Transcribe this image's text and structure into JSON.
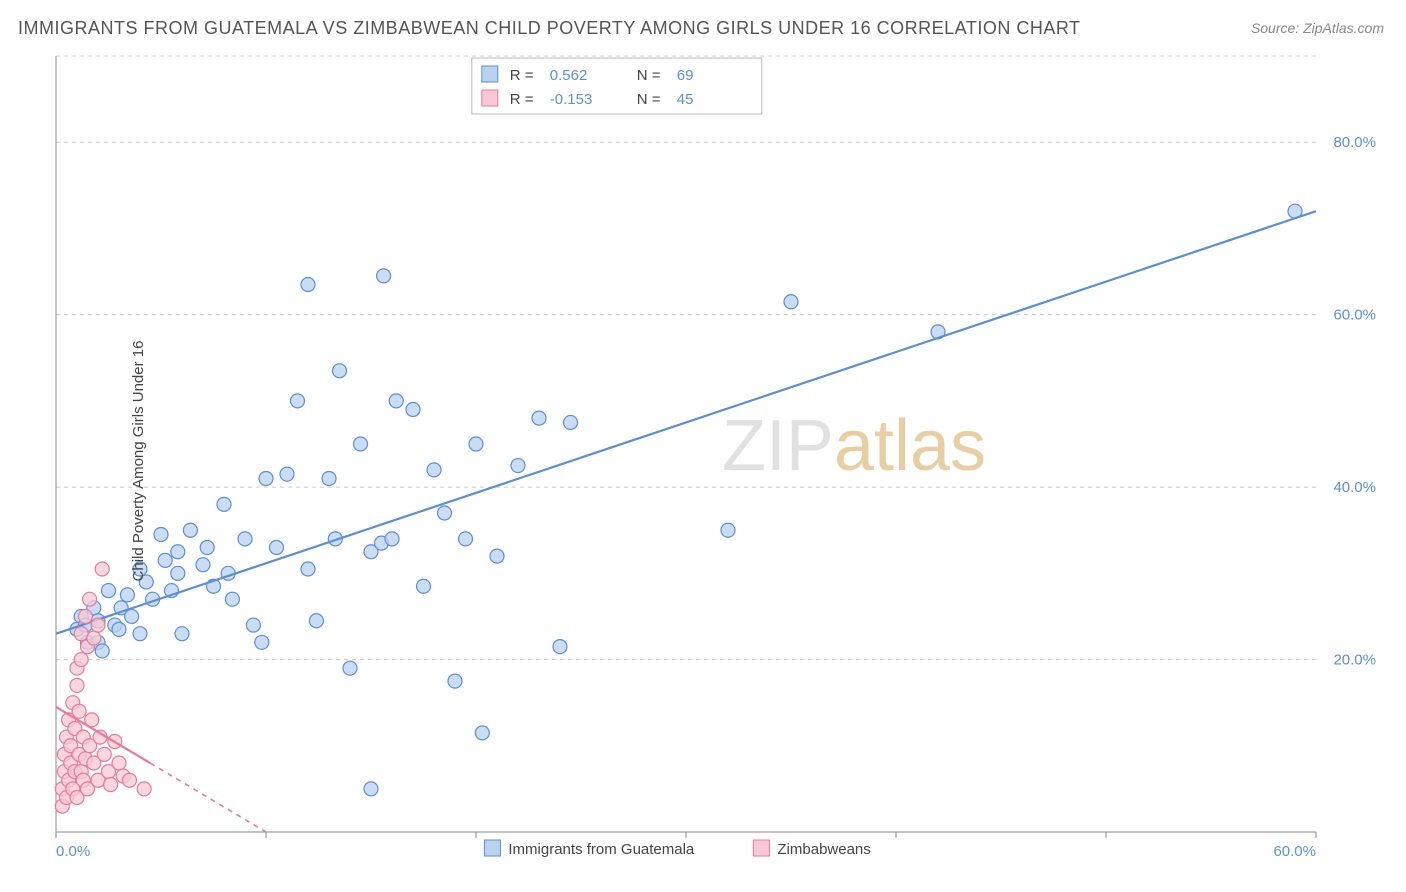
{
  "title": "IMMIGRANTS FROM GUATEMALA VS ZIMBABWEAN CHILD POVERTY AMONG GIRLS UNDER 16 CORRELATION CHART",
  "source_label": "Source: ZipAtlas.com",
  "y_axis_label": "Child Poverty Among Girls Under 16",
  "watermark": {
    "part1": "ZIP",
    "part2": "atlas"
  },
  "chart": {
    "type": "scatter",
    "xlim": [
      0,
      60
    ],
    "ylim": [
      0,
      90
    ],
    "x_ticks": [
      0,
      10,
      20,
      30,
      40,
      50,
      60
    ],
    "x_tick_labels": [
      "0.0%",
      "",
      "",
      "",
      "",
      "",
      "60.0%"
    ],
    "y_ticks": [
      20,
      40,
      60,
      80
    ],
    "y_tick_labels": [
      "20.0%",
      "40.0%",
      "60.0%",
      "80.0%"
    ],
    "grid_y": [
      20,
      40,
      60,
      80,
      90
    ],
    "background_color": "#ffffff",
    "grid_color": "#cccccc",
    "series": [
      {
        "name": "Immigrants from Guatemala",
        "color_fill": "#b9d2f0",
        "color_stroke": "#5b8fd6",
        "marker_radius": 7,
        "R": "0.562",
        "N": "69",
        "trend": {
          "x1": 0,
          "y1": 23,
          "x2": 60,
          "y2": 72,
          "solid_until_x": 60
        },
        "points": [
          [
            1.0,
            23.5
          ],
          [
            1.2,
            25.0
          ],
          [
            1.4,
            24.0
          ],
          [
            1.5,
            22.0
          ],
          [
            1.8,
            26.0
          ],
          [
            2.0,
            22.0
          ],
          [
            2.0,
            24.5
          ],
          [
            2.2,
            21.0
          ],
          [
            2.5,
            28.0
          ],
          [
            2.8,
            24.0
          ],
          [
            3.0,
            23.5
          ],
          [
            3.1,
            26.0
          ],
          [
            3.4,
            27.5
          ],
          [
            3.6,
            25.0
          ],
          [
            4.0,
            23.0
          ],
          [
            4.0,
            30.5
          ],
          [
            4.3,
            29.0
          ],
          [
            4.6,
            27.0
          ],
          [
            5.0,
            34.5
          ],
          [
            5.2,
            31.5
          ],
          [
            5.5,
            28.0
          ],
          [
            5.8,
            30.0
          ],
          [
            5.8,
            32.5
          ],
          [
            6.0,
            23.0
          ],
          [
            6.4,
            35.0
          ],
          [
            7.0,
            31.0
          ],
          [
            7.2,
            33.0
          ],
          [
            7.5,
            28.5
          ],
          [
            8.0,
            38.0
          ],
          [
            8.2,
            30.0
          ],
          [
            8.4,
            27.0
          ],
          [
            9.0,
            34.0
          ],
          [
            9.4,
            24.0
          ],
          [
            9.8,
            22.0
          ],
          [
            10.0,
            41.0
          ],
          [
            10.5,
            33.0
          ],
          [
            11.0,
            41.5
          ],
          [
            11.5,
            50.0
          ],
          [
            12.0,
            30.5
          ],
          [
            12.0,
            63.5
          ],
          [
            12.4,
            24.5
          ],
          [
            13.0,
            41.0
          ],
          [
            13.3,
            34.0
          ],
          [
            13.5,
            53.5
          ],
          [
            14.0,
            19.0
          ],
          [
            14.5,
            45.0
          ],
          [
            15.0,
            32.5
          ],
          [
            15.0,
            5.0
          ],
          [
            15.5,
            33.5
          ],
          [
            15.6,
            64.5
          ],
          [
            16.0,
            34.0
          ],
          [
            16.2,
            50.0
          ],
          [
            17.0,
            49.0
          ],
          [
            17.5,
            28.5
          ],
          [
            18.0,
            42.0
          ],
          [
            18.5,
            37.0
          ],
          [
            19.0,
            17.5
          ],
          [
            19.5,
            34.0
          ],
          [
            20.0,
            45.0
          ],
          [
            20.3,
            11.5
          ],
          [
            21.0,
            32.0
          ],
          [
            22.0,
            42.5
          ],
          [
            23.0,
            48.0
          ],
          [
            24.0,
            21.5
          ],
          [
            24.5,
            47.5
          ],
          [
            32.0,
            35.0
          ],
          [
            35.0,
            61.5
          ],
          [
            42.0,
            58.0
          ],
          [
            59.0,
            72.0
          ]
        ]
      },
      {
        "name": "Zimbabweans",
        "color_fill": "#f8c9d4",
        "color_stroke": "#e87a9a",
        "marker_radius": 7,
        "R": "-0.153",
        "N": "45",
        "trend": {
          "x1": 0,
          "y1": 14.5,
          "x2": 10,
          "y2": 0,
          "solid_until_x": 4.5
        },
        "points": [
          [
            0.3,
            3.0
          ],
          [
            0.3,
            5.0
          ],
          [
            0.4,
            7.0
          ],
          [
            0.4,
            9.0
          ],
          [
            0.5,
            4.0
          ],
          [
            0.5,
            11.0
          ],
          [
            0.6,
            6.0
          ],
          [
            0.6,
            13.0
          ],
          [
            0.7,
            8.0
          ],
          [
            0.7,
            10.0
          ],
          [
            0.8,
            5.0
          ],
          [
            0.8,
            15.0
          ],
          [
            0.9,
            7.0
          ],
          [
            0.9,
            12.0
          ],
          [
            1.0,
            4.0
          ],
          [
            1.0,
            17.0
          ],
          [
            1.0,
            19.0
          ],
          [
            1.1,
            9.0
          ],
          [
            1.1,
            14.0
          ],
          [
            1.2,
            7.0
          ],
          [
            1.2,
            20.0
          ],
          [
            1.2,
            23.0
          ],
          [
            1.3,
            6.0
          ],
          [
            1.3,
            11.0
          ],
          [
            1.4,
            8.5
          ],
          [
            1.4,
            25.0
          ],
          [
            1.5,
            5.0
          ],
          [
            1.5,
            21.5
          ],
          [
            1.6,
            10.0
          ],
          [
            1.6,
            27.0
          ],
          [
            1.7,
            13.0
          ],
          [
            1.8,
            8.0
          ],
          [
            1.8,
            22.5
          ],
          [
            2.0,
            6.0
          ],
          [
            2.0,
            24.0
          ],
          [
            2.1,
            11.0
          ],
          [
            2.2,
            30.5
          ],
          [
            2.3,
            9.0
          ],
          [
            2.5,
            7.0
          ],
          [
            2.6,
            5.5
          ],
          [
            2.8,
            10.5
          ],
          [
            3.0,
            8.0
          ],
          [
            3.2,
            6.5
          ],
          [
            3.5,
            6.0
          ],
          [
            4.2,
            5.0
          ]
        ]
      }
    ],
    "stats_legend": {
      "rows": [
        {
          "swatch": "blue",
          "R_label": "R = ",
          "R": "0.562",
          "N_label": "N = ",
          "N": "69"
        },
        {
          "swatch": "pink",
          "R_label": "R = ",
          "R": "-0.153",
          "N_label": "N = ",
          "N": "45"
        }
      ]
    },
    "bottom_legend": [
      {
        "swatch": "blue",
        "label": "Immigrants from Guatemala"
      },
      {
        "swatch": "pink",
        "label": "Zimbabweans"
      }
    ]
  }
}
